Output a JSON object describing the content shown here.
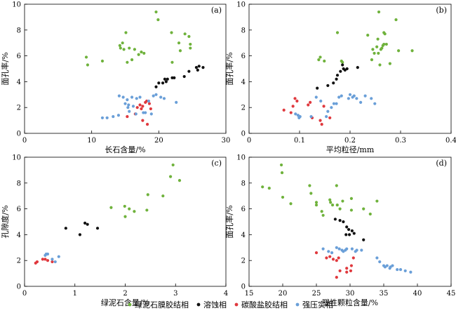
{
  "legend": [
    {
      "name": "绿泥石膜胶结相",
      "color": "#6fb23c"
    },
    {
      "name": "溶蚀相",
      "color": "#111111"
    },
    {
      "name": "碳酸盐胶结相",
      "color": "#e0393e"
    },
    {
      "name": "强压实相",
      "color": "#6a9fd8"
    }
  ],
  "chart_data": [
    {
      "type": "scatter",
      "panel": "(a)",
      "xlabel": "长石含量/%",
      "ylabel": "面孔率/%",
      "xlim": [
        0,
        30
      ],
      "ylim": [
        0,
        10
      ],
      "xticks": [
        0,
        10,
        20,
        30
      ],
      "yticks": [
        0,
        2,
        4,
        6,
        8,
        10
      ],
      "series": [
        {
          "name": "绿泥石膜胶结相",
          "points": [
            [
              9.2,
              5.9
            ],
            [
              9.4,
              5.3
            ],
            [
              11.6,
              5.6
            ],
            [
              14.2,
              6.8
            ],
            [
              14.3,
              6.6
            ],
            [
              14.6,
              7.0
            ],
            [
              14.8,
              6.5
            ],
            [
              15.1,
              7.8
            ],
            [
              15.3,
              5.5
            ],
            [
              15.6,
              6.6
            ],
            [
              16.0,
              5.7
            ],
            [
              16.4,
              6.5
            ],
            [
              17.0,
              6.1
            ],
            [
              17.4,
              6.3
            ],
            [
              17.8,
              6.2
            ],
            [
              19.6,
              9.4
            ],
            [
              19.9,
              8.8
            ],
            [
              21.9,
              7.8
            ],
            [
              22.0,
              5.5
            ],
            [
              23.0,
              7.0
            ],
            [
              23.2,
              6.4
            ],
            [
              23.9,
              7.7
            ],
            [
              24.5,
              7.5
            ],
            [
              24.7,
              6.6
            ],
            [
              24.7,
              6.9
            ]
          ]
        },
        {
          "name": "溶蚀相",
          "points": [
            [
              19.6,
              3.6
            ],
            [
              20.0,
              3.9
            ],
            [
              20.6,
              3.9
            ],
            [
              20.9,
              4.2
            ],
            [
              21.1,
              4.0
            ],
            [
              21.3,
              4.2
            ],
            [
              22.0,
              4.3
            ],
            [
              22.3,
              4.3
            ],
            [
              23.8,
              4.4
            ],
            [
              24.5,
              4.8
            ],
            [
              25.6,
              5.1
            ],
            [
              25.8,
              4.9
            ],
            [
              26.0,
              5.2
            ],
            [
              26.6,
              5.1
            ]
          ]
        },
        {
          "name": "碳酸盐胶结相",
          "points": [
            [
              15.3,
              1.3
            ],
            [
              16.5,
              1.5
            ],
            [
              16.8,
              2.0
            ],
            [
              17.2,
              2.2
            ],
            [
              17.6,
              2.1
            ],
            [
              18.0,
              2.4
            ],
            [
              18.2,
              2.5
            ],
            [
              18.6,
              2.3
            ],
            [
              18.8,
              1.9
            ],
            [
              17.4,
              1.9
            ],
            [
              17.6,
              1.0
            ],
            [
              18.3,
              0.7
            ]
          ]
        },
        {
          "name": "强压实相",
          "points": [
            [
              11.6,
              1.2
            ],
            [
              12.3,
              1.2
            ],
            [
              13.2,
              1.3
            ],
            [
              14.0,
              1.4
            ],
            [
              14.7,
              2.8
            ],
            [
              15.0,
              2.3
            ],
            [
              15.3,
              2.6
            ],
            [
              15.4,
              2.0
            ],
            [
              15.5,
              2.2
            ],
            [
              15.6,
              1.7
            ],
            [
              16.0,
              2.8
            ],
            [
              16.2,
              2.1
            ],
            [
              16.6,
              1.5
            ],
            [
              16.7,
              2.7
            ],
            [
              17.2,
              2.8
            ],
            [
              17.7,
              1.6
            ],
            [
              18.0,
              1.6
            ],
            [
              18.5,
              2.5
            ],
            [
              18.9,
              1.5
            ],
            [
              19.2,
              2.9
            ],
            [
              19.6,
              3.0
            ],
            [
              20.3,
              2.8
            ],
            [
              20.8,
              2.7
            ],
            [
              22.6,
              2.4
            ],
            [
              14.1,
              2.9
            ]
          ]
        }
      ]
    },
    {
      "type": "scatter",
      "panel": "(b)",
      "xlabel": "平均粒径/mm",
      "ylabel": "面孔率/%",
      "xlim": [
        0,
        0.4
      ],
      "ylim": [
        0,
        10
      ],
      "xticks": [
        0,
        0.1,
        0.2,
        0.3,
        0.4
      ],
      "yticks": [
        0,
        2,
        4,
        6,
        8,
        10
      ],
      "series": [
        {
          "name": "绿泥石膜胶结相",
          "points": [
            [
              0.138,
              5.7
            ],
            [
              0.141,
              5.9
            ],
            [
              0.149,
              5.6
            ],
            [
              0.175,
              7.8
            ],
            [
              0.183,
              5.6
            ],
            [
              0.185,
              5.5
            ],
            [
              0.235,
              7.6
            ],
            [
              0.243,
              5.7
            ],
            [
              0.245,
              6.5
            ],
            [
              0.248,
              6.2
            ],
            [
              0.253,
              6.7
            ],
            [
              0.255,
              7.3
            ],
            [
              0.256,
              6.2
            ],
            [
              0.257,
              9.4
            ],
            [
              0.261,
              6.5
            ],
            [
              0.263,
              6.6
            ],
            [
              0.265,
              6.8
            ],
            [
              0.267,
              6.9
            ],
            [
              0.267,
              7.8
            ],
            [
              0.269,
              7.7
            ],
            [
              0.272,
              6.9
            ],
            [
              0.279,
              5.4
            ],
            [
              0.291,
              8.8
            ],
            [
              0.296,
              6.4
            ],
            [
              0.323,
              6.4
            ],
            [
              0.259,
              5.3
            ]
          ]
        },
        {
          "name": "溶蚀相",
          "points": [
            [
              0.135,
              3.5
            ],
            [
              0.156,
              3.7
            ],
            [
              0.167,
              3.9
            ],
            [
              0.173,
              4.2
            ],
            [
              0.175,
              4.5
            ],
            [
              0.181,
              4.8
            ],
            [
              0.185,
              5.3
            ],
            [
              0.19,
              4.9
            ],
            [
              0.187,
              5.0
            ],
            [
              0.194,
              5.0
            ],
            [
              0.215,
              5.1
            ]
          ]
        },
        {
          "name": "碳酸盐胶结相",
          "points": [
            [
              0.069,
              1.8
            ],
            [
              0.083,
              1.6
            ],
            [
              0.087,
              2.1
            ],
            [
              0.091,
              2.7
            ],
            [
              0.095,
              2.5
            ],
            [
              0.117,
              2.2
            ],
            [
              0.121,
              2.4
            ],
            [
              0.125,
              1.2
            ],
            [
              0.141,
              1.0
            ],
            [
              0.144,
              0.7
            ],
            [
              0.148,
              2.1
            ],
            [
              0.16,
              1.2
            ]
          ]
        },
        {
          "name": "强压实相",
          "points": [
            [
              0.092,
              1.5
            ],
            [
              0.097,
              1.4
            ],
            [
              0.099,
              1.2
            ],
            [
              0.101,
              1.3
            ],
            [
              0.123,
              1.3
            ],
            [
              0.133,
              2.8
            ],
            [
              0.142,
              2.5
            ],
            [
              0.153,
              1.3
            ],
            [
              0.156,
              1.7
            ],
            [
              0.163,
              2.0
            ],
            [
              0.168,
              2.3
            ],
            [
              0.173,
              2.3
            ],
            [
              0.183,
              2.9
            ],
            [
              0.197,
              2.7
            ],
            [
              0.2,
              3.0
            ],
            [
              0.205,
              2.8
            ],
            [
              0.208,
              2.9
            ],
            [
              0.213,
              2.7
            ],
            [
              0.221,
              2.4
            ],
            [
              0.23,
              2.9
            ],
            [
              0.242,
              2.7
            ],
            [
              0.249,
              2.3
            ],
            [
              0.178,
              2.8
            ]
          ]
        }
      ]
    },
    {
      "type": "scatter",
      "panel": "(c)",
      "xlabel": "绿泥石含量/%",
      "ylabel": "孔隙度/%",
      "xlim": [
        0,
        4
      ],
      "ylim": [
        0,
        10
      ],
      "xticks": [
        0,
        1,
        2,
        3,
        4
      ],
      "yticks": [
        0,
        2,
        4,
        6,
        8,
        10
      ],
      "series": [
        {
          "name": "绿泥石膜胶结相",
          "points": [
            [
              1.72,
              6.1
            ],
            [
              1.99,
              6.2
            ],
            [
              2.0,
              5.4
            ],
            [
              2.08,
              6.0
            ],
            [
              2.18,
              5.8
            ],
            [
              2.45,
              7.1
            ],
            [
              2.43,
              5.9
            ],
            [
              2.75,
              7.0
            ],
            [
              2.9,
              8.5
            ],
            [
              2.95,
              9.4
            ],
            [
              3.08,
              8.2
            ]
          ]
        },
        {
          "name": "溶蚀相",
          "points": [
            [
              0.82,
              4.5
            ],
            [
              1.1,
              4.0
            ],
            [
              1.2,
              4.9
            ],
            [
              1.25,
              4.8
            ],
            [
              1.45,
              4.5
            ]
          ]
        },
        {
          "name": "碳酸盐胶结相",
          "points": [
            [
              0.22,
              1.8
            ],
            [
              0.25,
              1.9
            ],
            [
              0.36,
              2.1
            ],
            [
              0.41,
              2.1
            ],
            [
              0.46,
              2.0
            ],
            [
              0.55,
              1.9
            ]
          ]
        },
        {
          "name": "强压实相",
          "points": [
            [
              0.41,
              2.4
            ],
            [
              0.43,
              2.5
            ],
            [
              0.46,
              2.5
            ],
            [
              0.55,
              2.1
            ],
            [
              0.61,
              1.9
            ],
            [
              0.68,
              2.3
            ]
          ]
        }
      ]
    },
    {
      "type": "scatter",
      "panel": "(d)",
      "xlabel": "塑性颗粒含量/%",
      "ylabel": "面孔率/%",
      "xlim": [
        15,
        45
      ],
      "ylim": [
        0,
        10
      ],
      "xticks": [
        15,
        20,
        25,
        30,
        35,
        40,
        45
      ],
      "yticks": [
        0,
        2,
        4,
        6,
        8,
        10
      ],
      "series": [
        {
          "name": "绿泥石膜胶结相",
          "points": [
            [
              17.0,
              7.7
            ],
            [
              18.0,
              7.6
            ],
            [
              19.8,
              9.4
            ],
            [
              19.9,
              8.8
            ],
            [
              20.0,
              6.9
            ],
            [
              21.2,
              6.4
            ],
            [
              24.0,
              7.8
            ],
            [
              24.2,
              7.2
            ],
            [
              25.0,
              6.5
            ],
            [
              25.0,
              6.3
            ],
            [
              25.8,
              5.8
            ],
            [
              26.0,
              5.5
            ],
            [
              27.0,
              6.7
            ],
            [
              27.1,
              6.5
            ],
            [
              27.4,
              6.3
            ],
            [
              28.0,
              7.8
            ],
            [
              28.1,
              6.3
            ],
            [
              28.5,
              6.0
            ],
            [
              28.9,
              6.6
            ],
            [
              30.2,
              6.8
            ],
            [
              30.2,
              5.9
            ],
            [
              32.0,
              6.0
            ],
            [
              33.0,
              5.6
            ],
            [
              34.0,
              6.6
            ]
          ]
        },
        {
          "name": "溶蚀相",
          "points": [
            [
              27.8,
              5.2
            ],
            [
              28.5,
              5.1
            ],
            [
              29.0,
              5.0
            ],
            [
              29.5,
              4.6
            ],
            [
              29.4,
              4.0
            ],
            [
              29.8,
              4.4
            ],
            [
              29.9,
              4.0
            ],
            [
              30.3,
              4.3
            ],
            [
              30.6,
              4.1
            ],
            [
              32.0,
              3.6
            ]
          ]
        },
        {
          "name": "碳酸盐胶结相",
          "points": [
            [
              25.0,
              2.6
            ],
            [
              26.5,
              2.2
            ],
            [
              27.0,
              2.3
            ],
            [
              27.5,
              2.1
            ],
            [
              28.0,
              2.0
            ],
            [
              28.3,
              2.2
            ],
            [
              28.5,
              1.2
            ],
            [
              28.0,
              0.7
            ],
            [
              29.5,
              1.1
            ],
            [
              29.5,
              1.4
            ],
            [
              30.2,
              1.6
            ],
            [
              30.5,
              2.2
            ],
            [
              30.1,
              1.2
            ]
          ]
        },
        {
          "name": "强压实相",
          "points": [
            [
              26.0,
              2.9
            ],
            [
              26.8,
              2.7
            ],
            [
              27.3,
              2.6
            ],
            [
              28.0,
              3.0
            ],
            [
              28.4,
              2.9
            ],
            [
              28.8,
              2.8
            ],
            [
              29.0,
              2.7
            ],
            [
              29.3,
              2.8
            ],
            [
              29.5,
              2.9
            ],
            [
              30.3,
              2.9
            ],
            [
              30.8,
              2.7
            ],
            [
              31.0,
              2.8
            ],
            [
              31.7,
              2.8
            ],
            [
              34.0,
              2.2
            ],
            [
              34.4,
              1.9
            ],
            [
              35.0,
              1.6
            ],
            [
              35.2,
              1.5
            ],
            [
              35.5,
              1.6
            ],
            [
              35.9,
              1.4
            ],
            [
              36.0,
              1.5
            ],
            [
              36.3,
              1.6
            ],
            [
              37.0,
              1.3
            ],
            [
              37.5,
              1.3
            ],
            [
              38.2,
              1.2
            ],
            [
              39.0,
              1.1
            ]
          ]
        }
      ]
    }
  ]
}
